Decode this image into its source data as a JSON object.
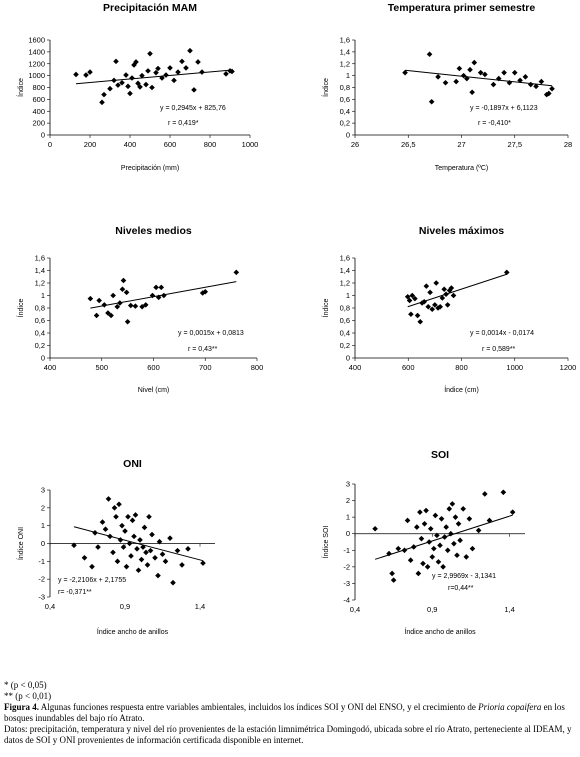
{
  "chart_data": [
    {
      "type": "scatter",
      "title": "Precipitación MAM",
      "xlabel": "Precipitación (mm)",
      "ylabel": "Índice",
      "xlim": [
        0,
        1000
      ],
      "ylim": [
        0,
        1600
      ],
      "xticks": [
        0,
        200,
        400,
        600,
        800,
        1000
      ],
      "xtick_labels": [
        "0",
        "200",
        "400",
        "600",
        "800",
        "1000"
      ],
      "yticks": [
        0,
        200,
        400,
        600,
        800,
        1000,
        1200,
        1400,
        1600
      ],
      "ytick_labels": [
        "0",
        "200",
        "400",
        "600",
        "800",
        "1000",
        "1200",
        "1400",
        "1600"
      ],
      "equation": "y = 0,2945x + 825,76",
      "r_label": "r = 0,419*",
      "trendline": {
        "slope": 0.2945,
        "intercept": 825.76
      },
      "points": [
        [
          130,
          1020
        ],
        [
          180,
          1010
        ],
        [
          200,
          1060
        ],
        [
          260,
          550
        ],
        [
          270,
          680
        ],
        [
          300,
          780
        ],
        [
          320,
          920
        ],
        [
          330,
          1240
        ],
        [
          340,
          840
        ],
        [
          360,
          880
        ],
        [
          380,
          1010
        ],
        [
          390,
          820
        ],
        [
          400,
          700
        ],
        [
          410,
          960
        ],
        [
          420,
          1180
        ],
        [
          430,
          1230
        ],
        [
          440,
          870
        ],
        [
          450,
          810
        ],
        [
          460,
          1000
        ],
        [
          480,
          850
        ],
        [
          490,
          1080
        ],
        [
          500,
          1370
        ],
        [
          510,
          800
        ],
        [
          530,
          1050
        ],
        [
          540,
          1120
        ],
        [
          560,
          960
        ],
        [
          580,
          1010
        ],
        [
          600,
          1130
        ],
        [
          620,
          920
        ],
        [
          640,
          1060
        ],
        [
          660,
          1240
        ],
        [
          680,
          1130
        ],
        [
          700,
          1420
        ],
        [
          720,
          760
        ],
        [
          740,
          1230
        ],
        [
          760,
          1060
        ],
        [
          880,
          1030
        ],
        [
          900,
          1080
        ],
        [
          910,
          1070
        ]
      ]
    },
    {
      "type": "scatter",
      "title": "Temperatura primer semestre",
      "xlabel": "Temperatura (ºC)",
      "ylabel": "Índice",
      "xlim": [
        26,
        28
      ],
      "ylim": [
        0,
        1.6
      ],
      "xticks": [
        26,
        26.5,
        27,
        27.5,
        28
      ],
      "xtick_labels": [
        "26",
        "26,5",
        "27",
        "27,5",
        "28"
      ],
      "yticks": [
        0,
        0.2,
        0.4,
        0.6,
        0.8,
        1,
        1.2,
        1.4,
        1.6
      ],
      "ytick_labels": [
        "0",
        "0,2",
        "0,4",
        "0,6",
        "0,8",
        "1",
        "1,2",
        "1,4",
        "1,6"
      ],
      "equation": "y = -0,1897x + 6,1123",
      "r_label": "r = -0,410*",
      "trendline": {
        "slope": -0.1897,
        "intercept": 6.1123
      },
      "points": [
        [
          26.47,
          1.05
        ],
        [
          26.7,
          1.36
        ],
        [
          26.72,
          0.56
        ],
        [
          26.78,
          0.98
        ],
        [
          26.85,
          0.88
        ],
        [
          26.95,
          0.9
        ],
        [
          26.98,
          1.12
        ],
        [
          27.02,
          1.0
        ],
        [
          27.05,
          0.95
        ],
        [
          27.08,
          1.1
        ],
        [
          27.1,
          0.72
        ],
        [
          27.12,
          1.22
        ],
        [
          27.18,
          1.05
        ],
        [
          27.22,
          1.02
        ],
        [
          27.3,
          0.85
        ],
        [
          27.35,
          0.95
        ],
        [
          27.4,
          1.05
        ],
        [
          27.45,
          0.88
        ],
        [
          27.5,
          1.05
        ],
        [
          27.55,
          0.92
        ],
        [
          27.6,
          0.98
        ],
        [
          27.65,
          0.85
        ],
        [
          27.7,
          0.82
        ],
        [
          27.75,
          0.9
        ],
        [
          27.8,
          0.68
        ],
        [
          27.82,
          0.7
        ],
        [
          27.85,
          0.78
        ]
      ]
    },
    {
      "type": "scatter",
      "title": "Niveles medios",
      "xlabel": "Nivel (cm)",
      "ylabel": "Índice",
      "xlim": [
        400,
        800
      ],
      "ylim": [
        0,
        1.6
      ],
      "xticks": [
        400,
        500,
        600,
        700,
        800
      ],
      "xtick_labels": [
        "400",
        "500",
        "600",
        "700",
        "800"
      ],
      "yticks": [
        0,
        0.2,
        0.4,
        0.6,
        0.8,
        1,
        1.2,
        1.4,
        1.6
      ],
      "ytick_labels": [
        "0",
        "0,2",
        "0,4",
        "0,6",
        "0,8",
        "1",
        "1,2",
        "1,4",
        "1,6"
      ],
      "equation": "y = 0,0015x + 0,0813",
      "r_label": "r = 0,43**",
      "trendline": {
        "slope": 0.0015,
        "intercept": 0.0813
      },
      "points": [
        [
          478,
          0.95
        ],
        [
          490,
          0.68
        ],
        [
          495,
          0.92
        ],
        [
          505,
          0.85
        ],
        [
          512,
          0.72
        ],
        [
          518,
          0.68
        ],
        [
          522,
          1.0
        ],
        [
          530,
          0.82
        ],
        [
          535,
          0.88
        ],
        [
          540,
          1.1
        ],
        [
          542,
          1.24
        ],
        [
          548,
          1.05
        ],
        [
          550,
          0.58
        ],
        [
          556,
          0.84
        ],
        [
          565,
          0.83
        ],
        [
          578,
          0.82
        ],
        [
          585,
          0.85
        ],
        [
          598,
          1.0
        ],
        [
          605,
          1.13
        ],
        [
          610,
          0.97
        ],
        [
          615,
          1.13
        ],
        [
          620,
          1.0
        ],
        [
          695,
          1.04
        ],
        [
          700,
          1.06
        ],
        [
          760,
          1.37
        ]
      ]
    },
    {
      "type": "scatter",
      "title": "Niveles máximos",
      "xlabel": "Índice (cm)",
      "ylabel": "Índice",
      "xlim": [
        400,
        1200
      ],
      "ylim": [
        0,
        1.6
      ],
      "xticks": [
        400,
        600,
        800,
        1000,
        1200
      ],
      "xtick_labels": [
        "400",
        "600",
        "800",
        "1000",
        "1200"
      ],
      "yticks": [
        0,
        0.2,
        0.4,
        0.6,
        0.8,
        1,
        1.2,
        1.4,
        1.6
      ],
      "ytick_labels": [
        "0",
        "0,2",
        "0,4",
        "0,6",
        "0,8",
        "1",
        "1,2",
        "1,4",
        "1,6"
      ],
      "equation": "y = 0,0014x - 0,0174",
      "r_label": "r = 0,589**",
      "trendline": {
        "slope": 0.0014,
        "intercept": -0.0174
      },
      "points": [
        [
          598,
          0.98
        ],
        [
          605,
          0.92
        ],
        [
          610,
          0.7
        ],
        [
          615,
          1.0
        ],
        [
          625,
          0.95
        ],
        [
          635,
          0.68
        ],
        [
          645,
          0.58
        ],
        [
          652,
          0.88
        ],
        [
          660,
          0.9
        ],
        [
          668,
          1.15
        ],
        [
          675,
          0.82
        ],
        [
          682,
          1.05
        ],
        [
          690,
          0.78
        ],
        [
          700,
          0.85
        ],
        [
          705,
          1.2
        ],
        [
          712,
          0.8
        ],
        [
          720,
          0.82
        ],
        [
          728,
          0.96
        ],
        [
          735,
          1.1
        ],
        [
          742,
          1.02
        ],
        [
          748,
          0.85
        ],
        [
          755,
          1.08
        ],
        [
          762,
          1.12
        ],
        [
          770,
          1.0
        ],
        [
          970,
          1.37
        ]
      ]
    },
    {
      "type": "scatter",
      "title": "ONI",
      "xlabel": "Índice ancho de anillos",
      "ylabel": "Índice ONI",
      "xlim": [
        0.4,
        1.5
      ],
      "ylim": [
        -3,
        3
      ],
      "xticks": [
        0.4,
        0.9,
        1.4
      ],
      "xtick_labels": [
        "0,4",
        "0,9",
        "1,4"
      ],
      "yticks": [
        -3,
        -2,
        -1,
        0,
        1,
        2,
        3
      ],
      "ytick_labels": [
        "-3",
        "-2",
        "-1",
        "0",
        "1",
        "2",
        "3"
      ],
      "equation": "y = -2,2106x + 2,1755",
      "r_label": "r= -0,371**",
      "trendline": {
        "slope": -2.2106,
        "intercept": 2.1755
      },
      "points": [
        [
          0.56,
          -0.1
        ],
        [
          0.63,
          -0.8
        ],
        [
          0.68,
          -1.3
        ],
        [
          0.7,
          0.6
        ],
        [
          0.72,
          -0.2
        ],
        [
          0.75,
          1.2
        ],
        [
          0.77,
          0.8
        ],
        [
          0.79,
          2.5
        ],
        [
          0.8,
          0.4
        ],
        [
          0.82,
          -0.5
        ],
        [
          0.83,
          2.0
        ],
        [
          0.84,
          1.5
        ],
        [
          0.85,
          -1.0
        ],
        [
          0.86,
          2.2
        ],
        [
          0.87,
          0.2
        ],
        [
          0.88,
          1.0
        ],
        [
          0.89,
          -0.2
        ],
        [
          0.9,
          0.7
        ],
        [
          0.91,
          -1.3
        ],
        [
          0.92,
          1.5
        ],
        [
          0.93,
          0.0
        ],
        [
          0.94,
          -0.7
        ],
        [
          0.95,
          1.3
        ],
        [
          0.96,
          0.4
        ],
        [
          0.97,
          1.6
        ],
        [
          0.98,
          -0.3
        ],
        [
          0.99,
          -1.5
        ],
        [
          1.0,
          0.2
        ],
        [
          1.01,
          -0.9
        ],
        [
          1.02,
          -0.2
        ],
        [
          1.03,
          0.9
        ],
        [
          1.04,
          -0.5
        ],
        [
          1.05,
          -1.2
        ],
        [
          1.06,
          1.5
        ],
        [
          1.07,
          -0.4
        ],
        [
          1.08,
          0.5
        ],
        [
          1.1,
          -0.8
        ],
        [
          1.12,
          -1.8
        ],
        [
          1.13,
          0.1
        ],
        [
          1.15,
          -0.6
        ],
        [
          1.17,
          -1.0
        ],
        [
          1.2,
          0.3
        ],
        [
          1.22,
          -2.2
        ],
        [
          1.25,
          -0.4
        ],
        [
          1.28,
          -1.2
        ],
        [
          1.32,
          -0.3
        ],
        [
          1.42,
          -1.1
        ]
      ]
    },
    {
      "type": "scatter",
      "title": "SOI",
      "xlabel": "Índice ancho de anillos",
      "ylabel": "Índice SOI",
      "xlim": [
        0.4,
        1.5
      ],
      "ylim": [
        -4,
        3
      ],
      "xticks": [
        0.4,
        0.9,
        1.4
      ],
      "xtick_labels": [
        "0,4",
        "0,9",
        "1,4"
      ],
      "yticks": [
        -4,
        -3,
        -2,
        -1,
        0,
        1,
        2,
        3
      ],
      "ytick_labels": [
        "-4",
        "-3",
        "-2",
        "-1",
        "0",
        "1",
        "2",
        "3"
      ],
      "equation": "y = 2,9969x - 3,1341",
      "r_label": "r=0,44**",
      "trendline": {
        "slope": 2.9969,
        "intercept": -3.1341
      },
      "points": [
        [
          0.53,
          0.3
        ],
        [
          0.62,
          -1.2
        ],
        [
          0.64,
          -2.4
        ],
        [
          0.65,
          -2.8
        ],
        [
          0.68,
          -0.9
        ],
        [
          0.72,
          -1.0
        ],
        [
          0.74,
          0.8
        ],
        [
          0.76,
          -1.6
        ],
        [
          0.78,
          -0.8
        ],
        [
          0.8,
          0.4
        ],
        [
          0.81,
          -2.4
        ],
        [
          0.82,
          1.3
        ],
        [
          0.83,
          -0.3
        ],
        [
          0.84,
          -1.8
        ],
        [
          0.85,
          0.6
        ],
        [
          0.86,
          1.4
        ],
        [
          0.87,
          -2.0
        ],
        [
          0.88,
          -0.5
        ],
        [
          0.89,
          0.3
        ],
        [
          0.9,
          -1.4
        ],
        [
          0.91,
          -0.9
        ],
        [
          0.92,
          1.1
        ],
        [
          0.93,
          -0.1
        ],
        [
          0.94,
          -1.7
        ],
        [
          0.95,
          -0.7
        ],
        [
          0.96,
          0.9
        ],
        [
          0.97,
          -2.0
        ],
        [
          0.98,
          -0.2
        ],
        [
          0.99,
          0.4
        ],
        [
          1.0,
          -1.0
        ],
        [
          1.01,
          1.5
        ],
        [
          1.02,
          0.0
        ],
        [
          1.03,
          1.8
        ],
        [
          1.04,
          -0.6
        ],
        [
          1.05,
          1.0
        ],
        [
          1.06,
          -1.3
        ],
        [
          1.07,
          0.6
        ],
        [
          1.08,
          -0.4
        ],
        [
          1.1,
          1.5
        ],
        [
          1.12,
          -1.4
        ],
        [
          1.14,
          0.9
        ],
        [
          1.16,
          -0.9
        ],
        [
          1.2,
          0.2
        ],
        [
          1.24,
          2.4
        ],
        [
          1.27,
          0.8
        ],
        [
          1.36,
          2.5
        ],
        [
          1.42,
          1.3
        ]
      ]
    }
  ],
  "caption": {
    "note1": "* (p < 0,05)",
    "note2": "** (p < 0,01)",
    "figure_label": "Figura 4.",
    "text_before": " Algunas funciones respuesta entre variables ambientales, incluidos los índices SOI y ONI del ENSO, y el crecimiento de ",
    "species": "Prioria copaifera",
    "text_after": " en los bosques inundables del bajo río Atrato.",
    "data_note": "Datos: precipitación, temperatura y nivel del río provenientes de la estación limnimétrica Domingodó, ubicada sobre el río Atrato, perteneciente al IDEAM, y datos de SOI y ONI provenientes de información certificada disponible en internet."
  }
}
